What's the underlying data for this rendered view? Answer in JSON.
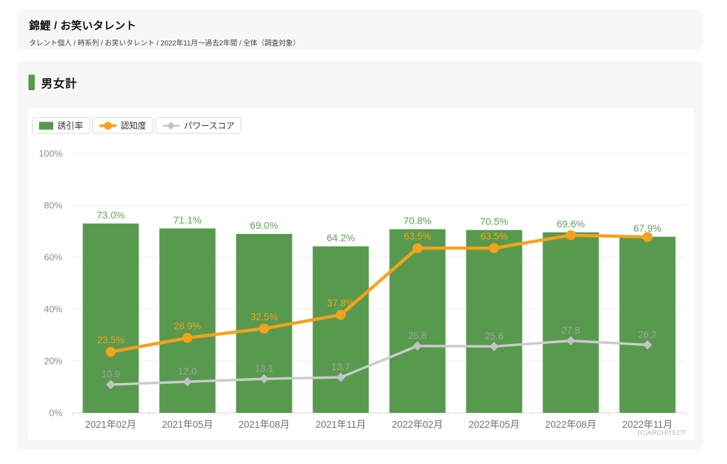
{
  "header": {
    "title": "錦鯉 / お笑いタレント",
    "breadcrumb": "タレント個人 / 時系列 / お笑いタレント / 2022年11月〜過去2年間 / 全体（調査対象）"
  },
  "section": {
    "title": "男女計"
  },
  "legend": {
    "items": [
      {
        "label": "誘引率",
        "swatch": "bar"
      },
      {
        "label": "認知度",
        "swatch": "line-circle"
      },
      {
        "label": "パワースコア",
        "swatch": "line-diamond"
      }
    ]
  },
  "credit": "(C)ARCHITECT",
  "colors": {
    "card_bg": "#f7f7f7",
    "bar": "#579a4e",
    "bar_label": "#60a156",
    "awareness": "#f7a11d",
    "power_line": "#cbcbcb",
    "power_marker": "#c2c2c6",
    "power_label": "#a2a2a2",
    "grid": "#ececec",
    "axis_line": "#d5d5d5",
    "axis_text": "#8c8c8c",
    "x_text": "#707070"
  },
  "chart_data": {
    "type": "bar",
    "title": "男女計",
    "categories": [
      "2021年02月",
      "2021年05月",
      "2021年08月",
      "2021年11月",
      "2022年02月",
      "2022年05月",
      "2022年08月",
      "2022年11月"
    ],
    "series": [
      {
        "name": "誘引率",
        "type": "bar",
        "values": [
          73.0,
          71.1,
          69.0,
          64.2,
          70.8,
          70.5,
          69.6,
          67.9
        ],
        "labels": [
          "73.0%",
          "71.1%",
          "69.0%",
          "64.2%",
          "70.8%",
          "70.5%",
          "69.6%",
          "67.9%"
        ]
      },
      {
        "name": "認知度",
        "type": "line",
        "marker": "circle",
        "values": [
          23.5,
          28.9,
          32.5,
          37.8,
          63.5,
          63.5,
          68.5,
          67.8
        ],
        "labels": [
          "23.5%",
          "28.9%",
          "32.5%",
          "37.8%",
          "63.5%",
          "63.5%",
          "",
          ""
        ]
      },
      {
        "name": "パワースコア",
        "type": "line",
        "marker": "diamond",
        "values": [
          10.9,
          12.0,
          13.1,
          13.7,
          25.8,
          25.6,
          27.8,
          26.2
        ],
        "labels": [
          "10.9",
          "12.0",
          "13.1",
          "13.7",
          "25.8",
          "25.6",
          "27.8",
          "26.2"
        ]
      }
    ],
    "y_ticks": [
      "0%",
      "20%",
      "40%",
      "60%",
      "80%",
      "100%"
    ],
    "ylim": [
      0,
      100
    ],
    "grid": true,
    "legend_position": "top-left"
  }
}
